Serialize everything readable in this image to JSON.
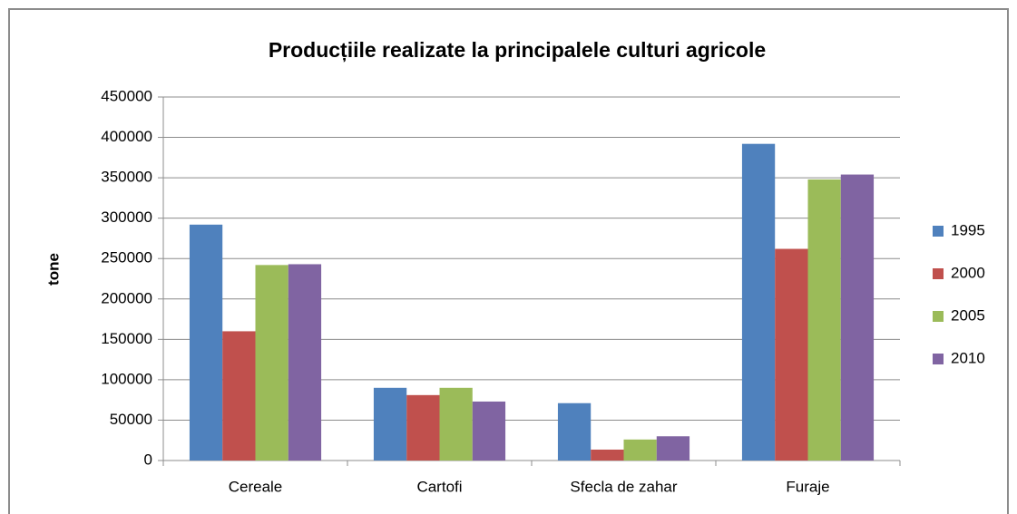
{
  "chart_data": {
    "type": "bar",
    "title": "Producțiile realizate la principalele culturi agricole",
    "y_label": "tone",
    "categories": [
      "Cereale",
      "Cartofi",
      "Sfecla de zahar",
      "Furaje"
    ],
    "series": [
      {
        "name": "1995",
        "color": "#4f81bd",
        "values": [
          292000,
          90000,
          71000,
          392000
        ]
      },
      {
        "name": "2000",
        "color": "#c0504d",
        "values": [
          160000,
          81000,
          13500,
          262000
        ]
      },
      {
        "name": "2005",
        "color": "#9bbb59",
        "values": [
          242000,
          90000,
          26000,
          348000
        ]
      },
      {
        "name": "2010",
        "color": "#8064a2",
        "values": [
          243000,
          73000,
          30000,
          354000
        ]
      }
    ],
    "ylim": [
      0,
      450000
    ],
    "yticks": [
      0,
      50000,
      100000,
      150000,
      200000,
      250000,
      300000,
      350000,
      400000,
      450000
    ],
    "grid": true,
    "legend": "right"
  }
}
